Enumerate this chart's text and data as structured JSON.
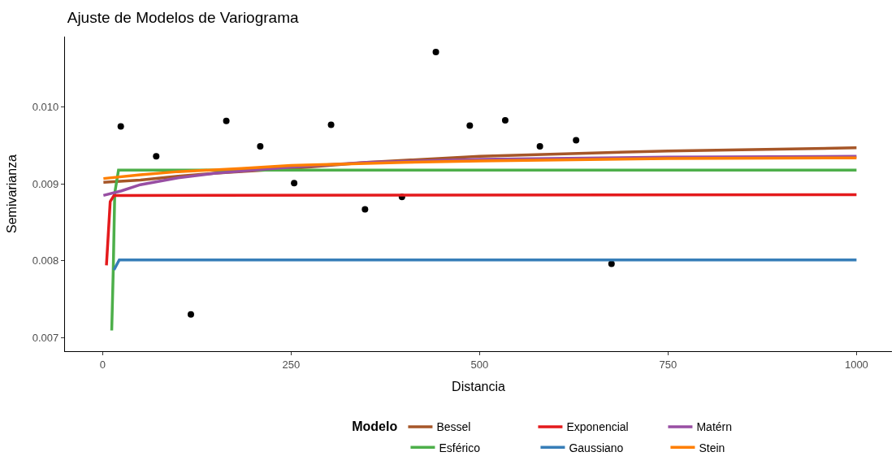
{
  "chart_data": {
    "type": "line",
    "title": "Ajuste de Modelos de Variograma",
    "xlabel": "Distancia",
    "ylabel": "Semivarianza",
    "legend_title": "Modelo",
    "legend": "bottom",
    "grid": false,
    "line_style": "solid",
    "xlim": [
      -50,
      1047
    ],
    "xticks": [
      0,
      250,
      500,
      750,
      1000
    ],
    "ylim": [
      0.00682,
      0.01092
    ],
    "yticks": [
      0.007,
      0.008,
      0.009,
      {
        "value": 0.01,
        "label": "0.010"
      }
    ],
    "series": [
      {
        "type": "scatter",
        "marker": "circle",
        "color": "#000000",
        "x": [
          24,
          71,
          117,
          164,
          209,
          254,
          303,
          348,
          397,
          442,
          487,
          534,
          580,
          628,
          675
        ],
        "values": [
          0.00975,
          0.00936,
          0.0073,
          0.00982,
          0.00949,
          0.00901,
          0.00977,
          0.00867,
          0.00883,
          0.01072,
          0.00976,
          0.00983,
          0.00949,
          0.00957,
          0.00796
        ]
      },
      {
        "name": "Bessel",
        "color": "#a65628",
        "x": [
          1,
          50,
          100,
          150,
          250,
          350,
          500,
          750,
          1000
        ],
        "values": [
          0.00902,
          0.00905,
          0.0091,
          0.00914,
          0.0092,
          0.00928,
          0.00936,
          0.00943,
          0.00947
        ]
      },
      {
        "name": "Esférico",
        "color": "#4daf4a",
        "x": [
          12,
          14,
          16,
          21,
          1000
        ],
        "values": [
          0.00709,
          0.00786,
          0.00888,
          0.00918,
          0.00918
        ]
      },
      {
        "name": "Exponencial",
        "color": "#e41a1c",
        "x": [
          5,
          10,
          15,
          1000
        ],
        "values": [
          0.00794,
          0.00877,
          0.00885,
          0.00886
        ]
      },
      {
        "name": "Gaussiano",
        "color": "#377eb8",
        "x": [
          15,
          22,
          1000
        ],
        "values": [
          0.00788,
          0.00801,
          0.00801
        ]
      },
      {
        "name": "Matérn",
        "color": "#984ea3",
        "x": [
          1,
          25,
          50,
          100,
          150,
          250,
          350,
          500,
          750,
          1000
        ],
        "values": [
          0.00885,
          0.00891,
          0.00899,
          0.00908,
          0.00914,
          0.00922,
          0.00928,
          0.00932,
          0.00935,
          0.00936
        ]
      },
      {
        "name": "Stein",
        "color": "#ff7f00",
        "x": [
          1,
          50,
          100,
          184,
          250,
          400,
          500,
          750,
          1000
        ],
        "values": [
          0.00907,
          0.00912,
          0.00916,
          0.0092,
          0.00924,
          0.00928,
          0.0093,
          0.00933,
          0.00934
        ]
      }
    ]
  }
}
